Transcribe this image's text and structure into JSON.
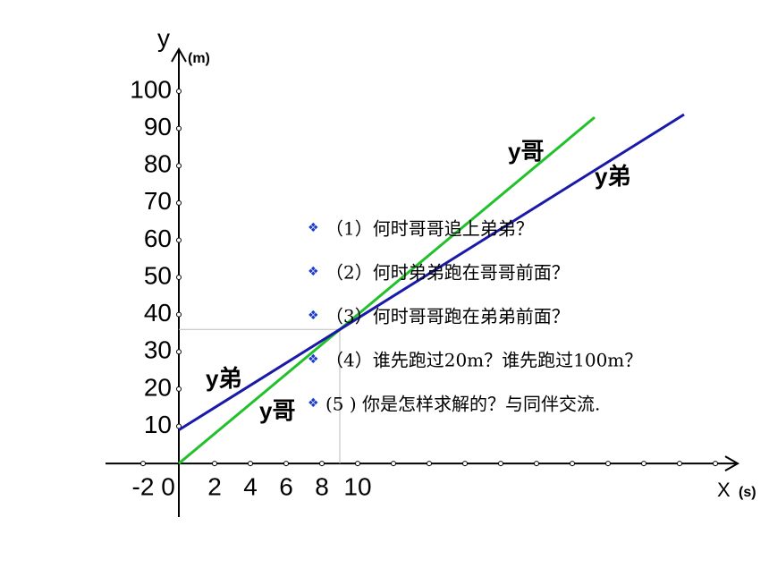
{
  "chart_data": {
    "type": "line",
    "y_label": "y",
    "y_unit": "(m)",
    "x_label": "X",
    "x_unit": "(s)",
    "xlim": [
      -4.1,
      31.25
    ],
    "ylim": [
      -14.4,
      111.3
    ],
    "xticks": [
      -2,
      0,
      2,
      4,
      6,
      8,
      10
    ],
    "xminor": [
      12,
      14,
      16,
      18,
      20,
      22,
      24,
      26,
      28,
      30
    ],
    "yticks": [
      10,
      20,
      30,
      40,
      50,
      60,
      70,
      80,
      90,
      100
    ],
    "series": [
      {
        "name": "y哥",
        "color": "#22c02a",
        "x": [
          0,
          23.25
        ],
        "values": [
          0,
          93
        ]
      },
      {
        "name": "y弟",
        "color": "#1a1aa8",
        "x": [
          0,
          28.25
        ],
        "values": [
          9,
          93.75
        ]
      }
    ]
  },
  "questions": [
    "（1）何时哥哥追上弟弟？",
    "（2）何时弟弟跑在哥哥前面？",
    "（3）何时哥哥跑在弟弟前面？",
    "（4）谁先跑过20m？谁先跑过100m？",
    "(5 ) 你是怎样求解的？与同伴交流."
  ]
}
